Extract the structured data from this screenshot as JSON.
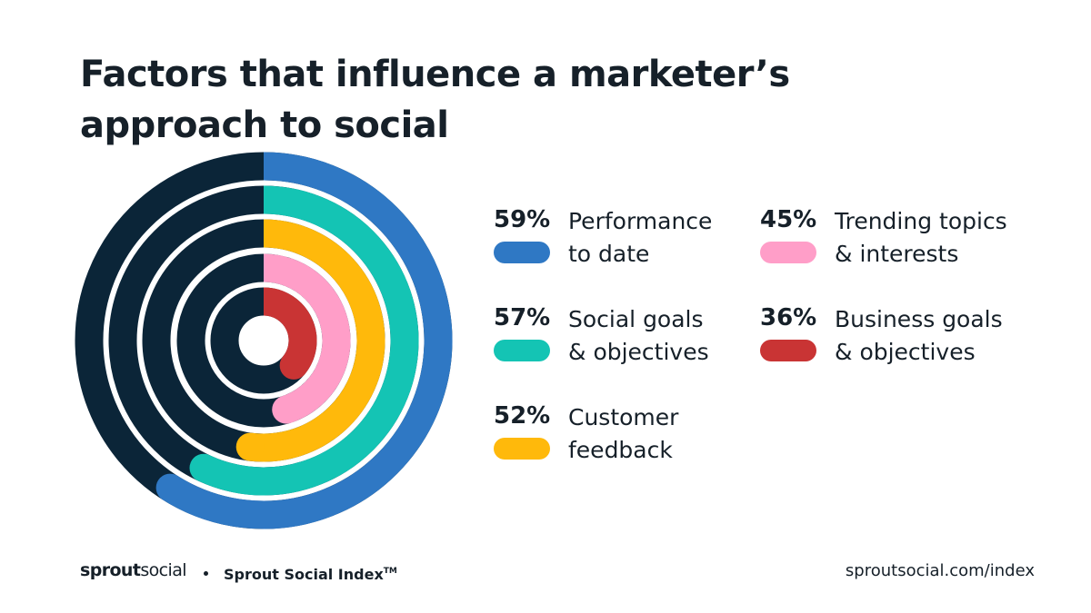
{
  "title": "Factors that influence a marketer’s approach to social",
  "chart_data": {
    "type": "radial-bar",
    "title": "Factors that influence a marketer’s approach to social",
    "track_color": "#0b2538",
    "series": [
      {
        "name": "Performance to date",
        "pct_label": "59%",
        "value": 59,
        "label": "Performance\nto date",
        "color": "#2f78c4"
      },
      {
        "name": "Social goals & objectives",
        "pct_label": "57%",
        "value": 57,
        "label": "Social goals\n& objectives",
        "color": "#14c4b4"
      },
      {
        "name": "Customer feedback",
        "pct_label": "52%",
        "value": 52,
        "label": "Customer\nfeedback",
        "color": "#ffb90b"
      },
      {
        "name": "Trending topics & interests",
        "pct_label": "45%",
        "value": 45,
        "label": "Trending topics\n& interests",
        "color": "#ff9ec8"
      },
      {
        "name": "Business goals & objectives",
        "pct_label": "36%",
        "value": 36,
        "label": "Business goals\n& objectives",
        "color": "#c93434"
      }
    ]
  },
  "footer": {
    "logo_bold": "sprout",
    "logo_light": "social",
    "index_name": "Sprout Social Index",
    "index_tm": "TM",
    "url": "sproutsocial.com/index"
  }
}
